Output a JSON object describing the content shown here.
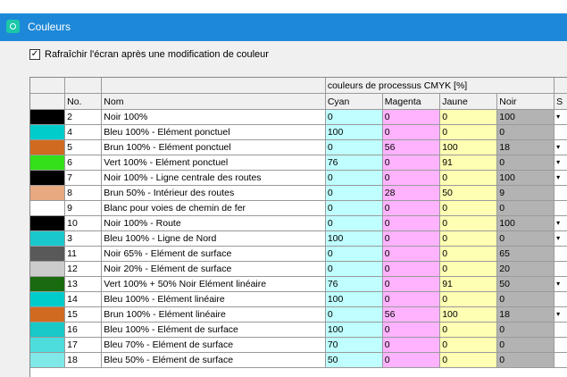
{
  "window": {
    "title": "Couleurs"
  },
  "option": {
    "checked_mark": "✓",
    "label": "Rafraîchir l'écran après une modification de couleur"
  },
  "table": {
    "group_header": "couleurs de processus CMYK [%]",
    "columns": {
      "no": "No.",
      "name": "Nom",
      "cyan": "Cyan",
      "magenta": "Magenta",
      "jaune": "Jaune",
      "noir": "Noir",
      "s": "S"
    },
    "rows": [
      {
        "color": "#000000",
        "no": "2",
        "name": "Noir 100%",
        "c": "0",
        "m": "0",
        "y": "0",
        "k": "100",
        "dd": "▾"
      },
      {
        "color": "#00cccc",
        "no": "4",
        "name": "Bleu 100% - Elément ponctuel",
        "c": "100",
        "m": "0",
        "y": "0",
        "k": "0",
        "dd": ""
      },
      {
        "color": "#d06a20",
        "no": "5",
        "name": "Brun 100% - Elément ponctuel",
        "c": "0",
        "m": "56",
        "y": "100",
        "k": "18",
        "dd": "▾"
      },
      {
        "color": "#33e01a",
        "no": "6",
        "name": "Vert 100% - Elément ponctuel",
        "c": "76",
        "m": "0",
        "y": "91",
        "k": "0",
        "dd": "▾"
      },
      {
        "color": "#000000",
        "no": "7",
        "name": "Noir 100% - Ligne centrale des routes",
        "c": "0",
        "m": "0",
        "y": "0",
        "k": "100",
        "dd": "▾"
      },
      {
        "color": "#e8a880",
        "no": "8",
        "name": "Brun 50% - Intérieur des routes",
        "c": "0",
        "m": "28",
        "y": "50",
        "k": "9",
        "dd": ""
      },
      {
        "color": "#ffffff",
        "no": "9",
        "name": "Blanc pour voies de chemin de fer",
        "c": "0",
        "m": "0",
        "y": "0",
        "k": "0",
        "dd": ""
      },
      {
        "color": "#000000",
        "no": "10",
        "name": "Noir 100% - Route",
        "c": "0",
        "m": "0",
        "y": "0",
        "k": "100",
        "dd": "▾"
      },
      {
        "color": "#1ac8cc",
        "no": "3",
        "name": "Bleu 100% - Ligne de Nord",
        "c": "100",
        "m": "0",
        "y": "0",
        "k": "0",
        "dd": "▾"
      },
      {
        "color": "#595959",
        "no": "11",
        "name": "Noir 65% - Elément de surface",
        "c": "0",
        "m": "0",
        "y": "0",
        "k": "65",
        "dd": ""
      },
      {
        "color": "#cccccc",
        "no": "12",
        "name": "Noir 20% - Elément de surface",
        "c": "0",
        "m": "0",
        "y": "0",
        "k": "20",
        "dd": ""
      },
      {
        "color": "#1a6a10",
        "no": "13",
        "name": "Vert 100% + 50% Noir Elément linéaire",
        "c": "76",
        "m": "0",
        "y": "91",
        "k": "50",
        "dd": "▾"
      },
      {
        "color": "#00cccc",
        "no": "14",
        "name": "Bleu 100% - Elément linéaire",
        "c": "100",
        "m": "0",
        "y": "0",
        "k": "0",
        "dd": ""
      },
      {
        "color": "#d06a20",
        "no": "15",
        "name": "Brun 100% - Elément linéaire",
        "c": "0",
        "m": "56",
        "y": "100",
        "k": "18",
        "dd": "▾"
      },
      {
        "color": "#19c8c8",
        "no": "16",
        "name": "Bleu 100% - Elément de surface",
        "c": "100",
        "m": "0",
        "y": "0",
        "k": "0",
        "dd": ""
      },
      {
        "color": "#4ddddd",
        "no": "17",
        "name": "Bleu 70% - Elément de surface",
        "c": "70",
        "m": "0",
        "y": "0",
        "k": "0",
        "dd": ""
      },
      {
        "color": "#80e8e8",
        "no": "18",
        "name": "Bleu 50% - Elément de surface",
        "c": "50",
        "m": "0",
        "y": "0",
        "k": "0",
        "dd": ""
      }
    ]
  }
}
